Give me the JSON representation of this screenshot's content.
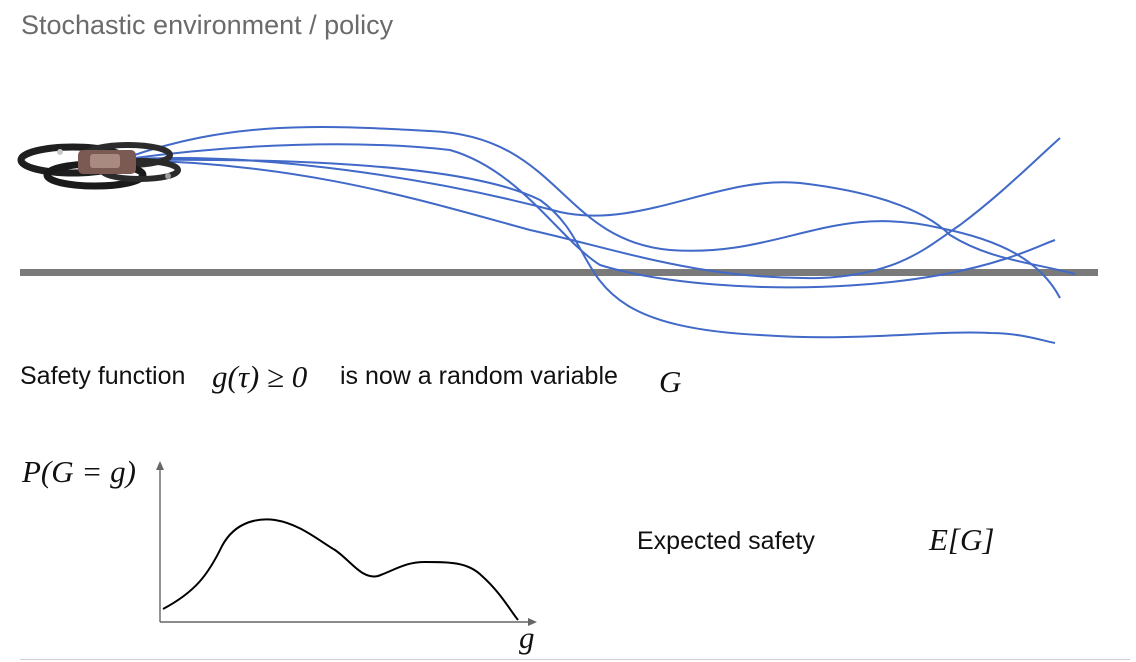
{
  "title": "Stochastic environment / policy",
  "safety_sentence": {
    "prefix": "Safety function",
    "math_func": "g(τ) ≥ 0",
    "middle": "is now a random variable",
    "math_var": "G"
  },
  "distribution": {
    "ylabel": "P(G = g)",
    "xlabel": "g"
  },
  "expectation": {
    "label": "Expected safety",
    "math": "E[G]"
  },
  "colors": {
    "trajectory": "#4169c8",
    "ground": "#7a7a7a",
    "curve": "#000000"
  },
  "icons": [
    "quadcopter-drone"
  ]
}
